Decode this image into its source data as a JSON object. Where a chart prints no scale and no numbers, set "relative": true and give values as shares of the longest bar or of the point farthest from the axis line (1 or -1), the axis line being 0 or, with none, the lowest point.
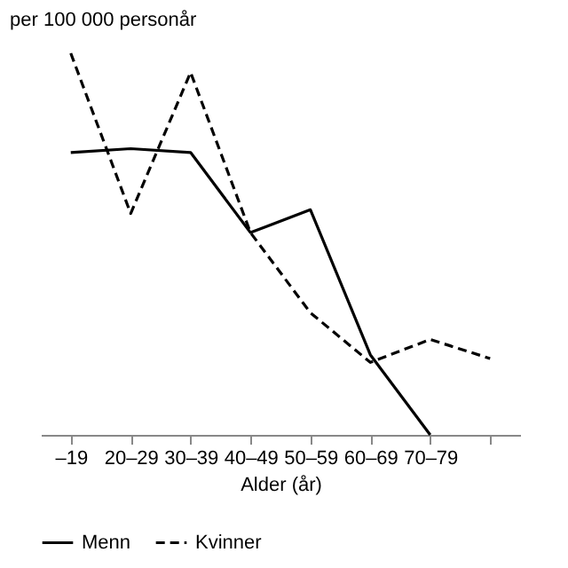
{
  "chart_data": {
    "type": "line",
    "relative": true,
    "ylabel": "per 100 000 personår",
    "xlabel": "Alder (år)",
    "categories": [
      "–19",
      "20–29",
      "30–39",
      "40–49",
      "50–59",
      "60–69",
      "70–79",
      null
    ],
    "legend": "bottom",
    "grid": false,
    "marker": "none",
    "series": [
      {
        "name": "Menn",
        "color": "#000000",
        "line_style": "solid",
        "values": [
          0.74,
          0.75,
          0.74,
          0.53,
          0.59,
          0.21,
          0,
          null
        ]
      },
      {
        "name": "Kvinner",
        "color": "#000000",
        "line_style": "dashed",
        "values": [
          1,
          0.58,
          0.95,
          0.53,
          0.32,
          0.19,
          0.25,
          0.2
        ]
      }
    ]
  }
}
